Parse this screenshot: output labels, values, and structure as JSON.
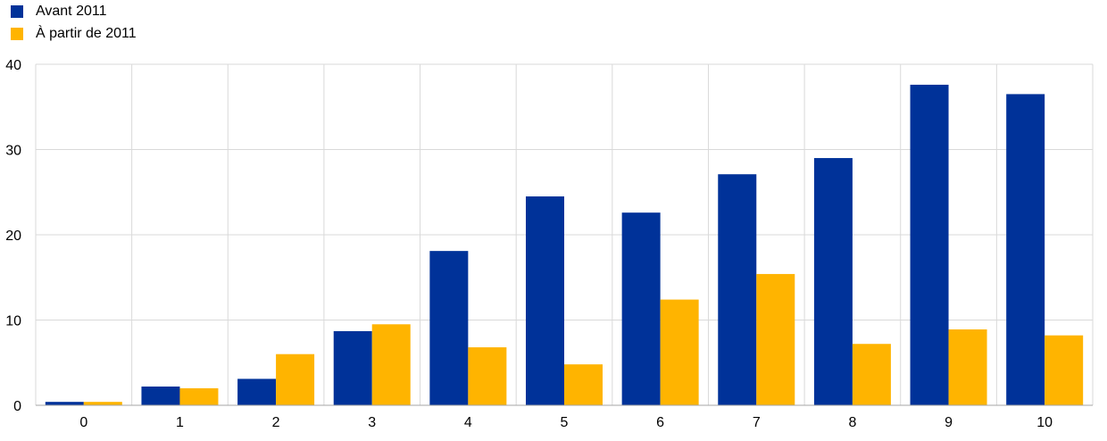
{
  "chart_data": {
    "type": "bar",
    "categories": [
      "0",
      "1",
      "2",
      "3",
      "4",
      "5",
      "6",
      "7",
      "8",
      "9",
      "10"
    ],
    "series": [
      {
        "name": "Avant 2011",
        "color": "#003299",
        "values": [
          0.4,
          2.2,
          3.1,
          8.7,
          18.1,
          24.5,
          22.6,
          27.1,
          29.0,
          37.6,
          36.5
        ]
      },
      {
        "name": "À partir de 2011",
        "color": "#FFB400",
        "values": [
          0.4,
          2.0,
          6.0,
          9.5,
          6.8,
          4.8,
          12.4,
          15.4,
          7.2,
          8.9,
          8.2
        ]
      }
    ],
    "ylim": [
      0,
      40
    ],
    "yticks": [
      0,
      10,
      20,
      30,
      40
    ],
    "grid": true,
    "legend_position": "top-left"
  }
}
